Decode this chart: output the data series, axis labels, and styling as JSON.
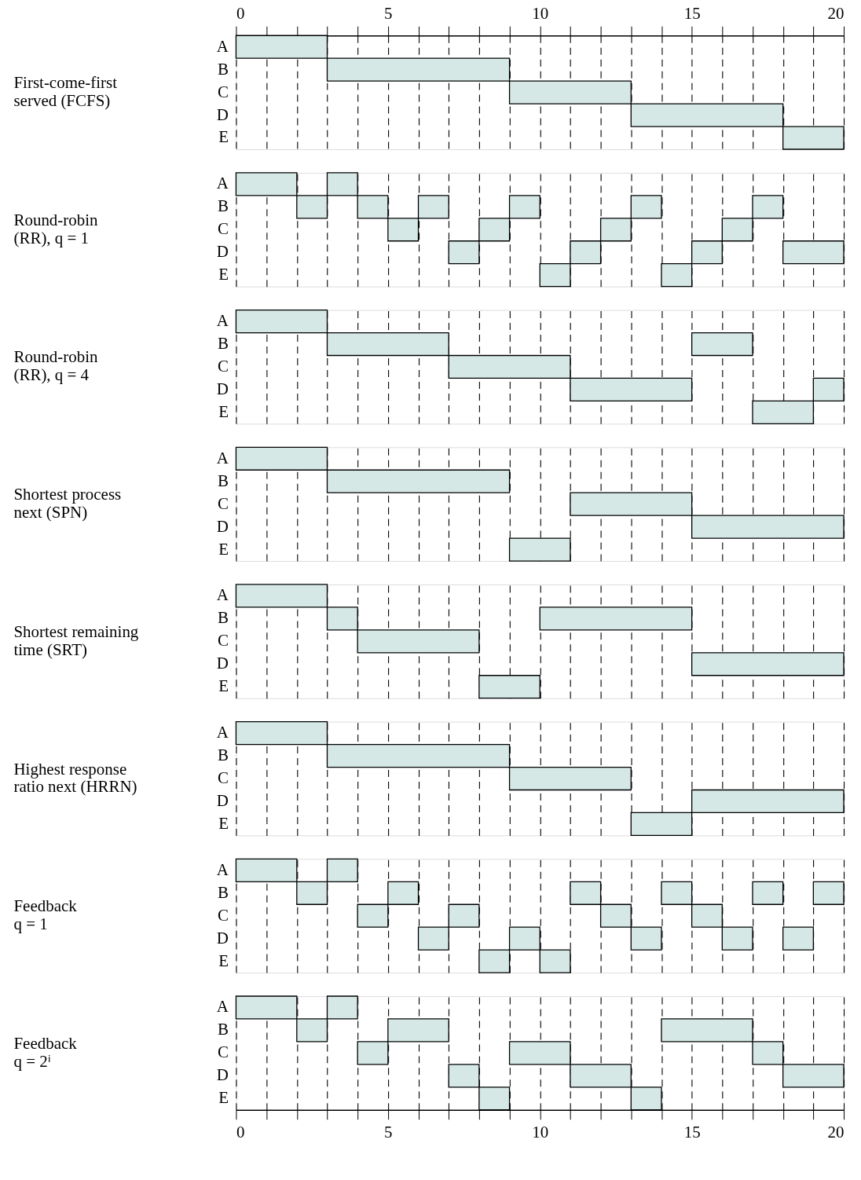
{
  "chart_data": [
    {
      "type": "bar",
      "orientation": "horizontal",
      "ylabel": "First-come-first\nserved (FCFS)",
      "categories": [
        "A",
        "B",
        "C",
        "D",
        "E"
      ],
      "grid": "x",
      "xlim": [
        0,
        20
      ],
      "xticks": [
        0,
        {
          "value": 1,
          "label": null
        },
        {
          "value": 2,
          "label": null
        },
        {
          "value": 3,
          "label": null
        },
        {
          "value": 4,
          "label": null
        },
        5,
        {
          "value": 6,
          "label": null
        },
        {
          "value": 7,
          "label": null
        },
        {
          "value": 8,
          "label": null
        },
        {
          "value": 9,
          "label": null
        },
        10,
        {
          "value": 11,
          "label": null
        },
        {
          "value": 12,
          "label": null
        },
        {
          "value": 13,
          "label": null
        },
        {
          "value": 14,
          "label": null
        },
        15,
        {
          "value": 16,
          "label": null
        },
        {
          "value": 17,
          "label": null
        },
        {
          "value": 18,
          "label": null
        },
        {
          "value": 19,
          "label": null
        },
        20
      ],
      "series": [
        {
          "color": "#d5e8e6",
          "base": [
            0,
            3,
            9,
            13,
            18
          ],
          "values": [
            3,
            6,
            4,
            5,
            2
          ]
        }
      ]
    },
    {
      "type": "bar",
      "orientation": "horizontal",
      "ylabel": "Round-robin\n(RR), q = 1",
      "categories": [
        "A",
        "B",
        "C",
        "D",
        "E"
      ],
      "grid": "x",
      "tick_labels": "y",
      "xlim": [
        0,
        20
      ],
      "xticks": [
        0,
        1,
        2,
        3,
        4,
        5,
        6,
        7,
        8,
        9,
        10,
        11,
        12,
        13,
        14,
        15,
        16,
        17,
        18,
        19,
        20
      ],
      "series": [
        {
          "color": "#d5e8e6",
          "base": [
            0,
            2,
            5,
            7,
            10
          ],
          "values": [
            2,
            1,
            1,
            1,
            1
          ]
        },
        {
          "color": "#d5e8e6",
          "base": [
            3,
            4,
            8,
            11,
            14
          ],
          "values": [
            1,
            1,
            1,
            1,
            1
          ]
        },
        {
          "color": "#d5e8e6",
          "base": [
            null,
            6,
            12,
            15,
            null
          ],
          "values": [
            null,
            1,
            1,
            1,
            null
          ]
        },
        {
          "color": "#d5e8e6",
          "base": [
            null,
            9,
            16,
            18,
            null
          ],
          "values": [
            null,
            1,
            1,
            2,
            null
          ]
        },
        {
          "color": "#d5e8e6",
          "base": [
            null,
            13,
            null,
            null,
            null
          ],
          "values": [
            null,
            1,
            null,
            null,
            null
          ]
        },
        {
          "color": "#d5e8e6",
          "base": [
            null,
            17,
            null,
            null,
            null
          ],
          "values": [
            null,
            1,
            null,
            null,
            null
          ]
        }
      ]
    },
    {
      "type": "bar",
      "orientation": "horizontal",
      "ylabel": "Round-robin\n(RR), q = 4",
      "categories": [
        "A",
        "B",
        "C",
        "D",
        "E"
      ],
      "grid": "x",
      "tick_labels": "y",
      "xlim": [
        0,
        20
      ],
      "xticks": [
        0,
        1,
        2,
        3,
        4,
        5,
        6,
        7,
        8,
        9,
        10,
        11,
        12,
        13,
        14,
        15,
        16,
        17,
        18,
        19,
        20
      ],
      "series": [
        {
          "color": "#d5e8e6",
          "base": [
            0,
            3,
            7,
            11,
            17
          ],
          "values": [
            3,
            4,
            4,
            4,
            2
          ]
        },
        {
          "color": "#d5e8e6",
          "base": [
            null,
            15,
            null,
            19,
            null
          ],
          "values": [
            null,
            2,
            null,
            1,
            null
          ]
        }
      ]
    },
    {
      "type": "bar",
      "orientation": "horizontal",
      "ylabel": "Shortest process\nnext (SPN)",
      "categories": [
        "A",
        "B",
        "C",
        "D",
        "E"
      ],
      "grid": "x",
      "tick_labels": "y",
      "xlim": [
        0,
        20
      ],
      "xticks": [
        0,
        1,
        2,
        3,
        4,
        5,
        6,
        7,
        8,
        9,
        10,
        11,
        12,
        13,
        14,
        15,
        16,
        17,
        18,
        19,
        20
      ],
      "series": [
        {
          "color": "#d5e8e6",
          "base": [
            0,
            3,
            11,
            15,
            9
          ],
          "values": [
            3,
            6,
            4,
            5,
            2
          ]
        }
      ]
    },
    {
      "type": "bar",
      "orientation": "horizontal",
      "ylabel": "Shortest remaining\ntime (SRT)",
      "categories": [
        "A",
        "B",
        "C",
        "D",
        "E"
      ],
      "grid": "x",
      "tick_labels": "y",
      "xlim": [
        0,
        20
      ],
      "xticks": [
        0,
        1,
        2,
        3,
        4,
        5,
        6,
        7,
        8,
        9,
        10,
        11,
        12,
        13,
        14,
        15,
        16,
        17,
        18,
        19,
        20
      ],
      "series": [
        {
          "color": "#d5e8e6",
          "base": [
            0,
            3,
            4,
            15,
            8
          ],
          "values": [
            3,
            1,
            4,
            5,
            2
          ]
        },
        {
          "color": "#d5e8e6",
          "base": [
            null,
            10,
            null,
            null,
            null
          ],
          "values": [
            null,
            5,
            null,
            null,
            null
          ]
        }
      ]
    },
    {
      "type": "bar",
      "orientation": "horizontal",
      "ylabel": "Highest response\nratio next (HRRN)",
      "categories": [
        "A",
        "B",
        "C",
        "D",
        "E"
      ],
      "grid": "x",
      "tick_labels": "y",
      "xlim": [
        0,
        20
      ],
      "xticks": [
        0,
        1,
        2,
        3,
        4,
        5,
        6,
        7,
        8,
        9,
        10,
        11,
        12,
        13,
        14,
        15,
        16,
        17,
        18,
        19,
        20
      ],
      "series": [
        {
          "color": "#d5e8e6",
          "base": [
            0,
            3,
            9,
            15,
            13
          ],
          "values": [
            3,
            6,
            4,
            5,
            2
          ]
        }
      ]
    },
    {
      "type": "bar",
      "orientation": "horizontal",
      "ylabel": "Feedback\nq = 1",
      "categories": [
        "A",
        "B",
        "C",
        "D",
        "E"
      ],
      "grid": "x",
      "tick_labels": "y",
      "xlim": [
        0,
        20
      ],
      "xticks": [
        0,
        1,
        2,
        3,
        4,
        5,
        6,
        7,
        8,
        9,
        10,
        11,
        12,
        13,
        14,
        15,
        16,
        17,
        18,
        19,
        20
      ],
      "series": [
        {
          "color": "#d5e8e6",
          "base": [
            0,
            2,
            4,
            6,
            8
          ],
          "values": [
            2,
            1,
            1,
            1,
            1
          ]
        },
        {
          "color": "#d5e8e6",
          "base": [
            3,
            5,
            7,
            9,
            10
          ],
          "values": [
            1,
            1,
            1,
            1,
            1
          ]
        },
        {
          "color": "#d5e8e6",
          "base": [
            null,
            11,
            12,
            13,
            null
          ],
          "values": [
            null,
            1,
            1,
            1,
            null
          ]
        },
        {
          "color": "#d5e8e6",
          "base": [
            null,
            14,
            15,
            16,
            null
          ],
          "values": [
            null,
            1,
            1,
            1,
            null
          ]
        },
        {
          "color": "#d5e8e6",
          "base": [
            null,
            17,
            null,
            18,
            null
          ],
          "values": [
            null,
            1,
            null,
            1,
            null
          ]
        },
        {
          "color": "#d5e8e6",
          "base": [
            null,
            19,
            null,
            null,
            null
          ],
          "values": [
            null,
            1,
            null,
            null,
            null
          ]
        }
      ]
    },
    {
      "type": "bar",
      "orientation": "horizontal",
      "ylabel": "Feedback\nq = 2ⁱ",
      "categories": [
        "A",
        "B",
        "C",
        "D",
        "E"
      ],
      "grid": "x",
      "xlim": [
        0,
        20
      ],
      "xticks": [
        0,
        {
          "value": 1,
          "label": null
        },
        {
          "value": 2,
          "label": null
        },
        {
          "value": 3,
          "label": null
        },
        {
          "value": 4,
          "label": null
        },
        5,
        {
          "value": 6,
          "label": null
        },
        {
          "value": 7,
          "label": null
        },
        {
          "value": 8,
          "label": null
        },
        {
          "value": 9,
          "label": null
        },
        10,
        {
          "value": 11,
          "label": null
        },
        {
          "value": 12,
          "label": null
        },
        {
          "value": 13,
          "label": null
        },
        {
          "value": 14,
          "label": null
        },
        15,
        {
          "value": 16,
          "label": null
        },
        {
          "value": 17,
          "label": null
        },
        {
          "value": 18,
          "label": null
        },
        {
          "value": 19,
          "label": null
        },
        20
      ],
      "series": [
        {
          "color": "#d5e8e6",
          "base": [
            0,
            2,
            4,
            7,
            8
          ],
          "values": [
            2,
            1,
            1,
            1,
            1
          ]
        },
        {
          "color": "#d5e8e6",
          "base": [
            3,
            5,
            9,
            11,
            13
          ],
          "values": [
            1,
            2,
            2,
            2,
            1
          ]
        },
        {
          "color": "#d5e8e6",
          "base": [
            null,
            14,
            17,
            18,
            null
          ],
          "values": [
            null,
            3,
            1,
            2,
            null
          ]
        }
      ]
    }
  ]
}
